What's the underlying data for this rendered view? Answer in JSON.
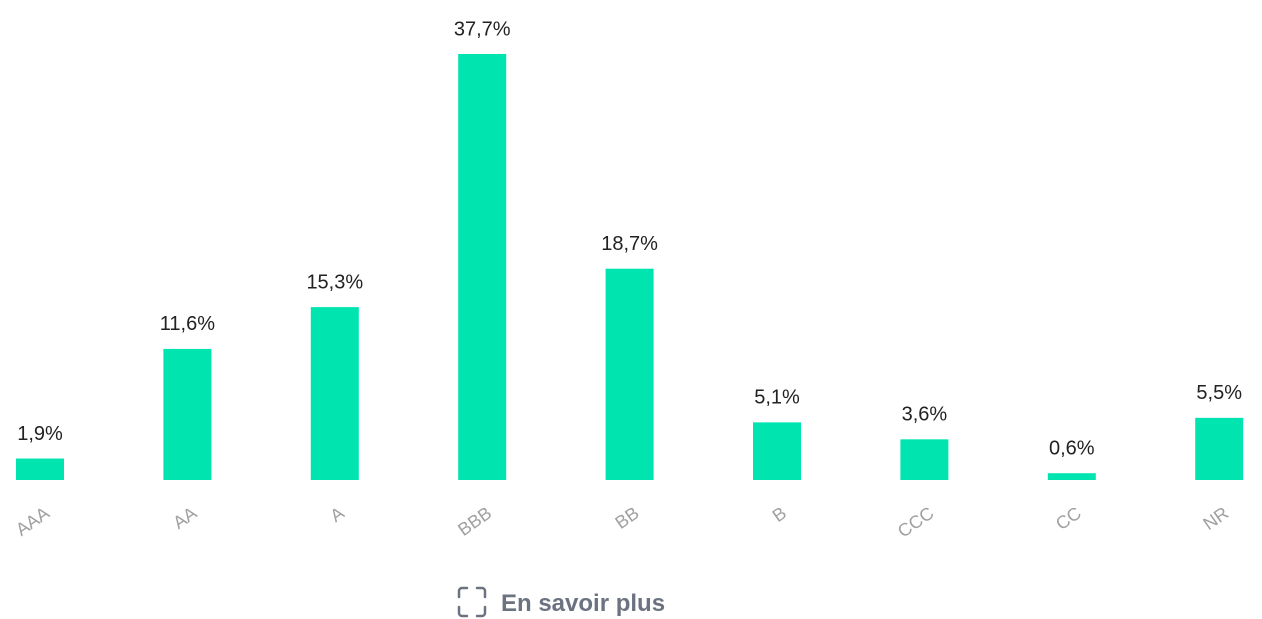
{
  "chart_data": {
    "type": "bar",
    "categories": [
      "AAA",
      "AA",
      "A",
      "BBB",
      "BB",
      "B",
      "CCC",
      "CC",
      "NR"
    ],
    "values": [
      1.9,
      11.6,
      15.3,
      37.7,
      18.7,
      5.1,
      3.6,
      0.6,
      5.5
    ],
    "value_labels": [
      "1,9%",
      "11,6%",
      "15,3%",
      "37,7%",
      "18,7%",
      "5,1%",
      "3,6%",
      "0,6%",
      "5,5%"
    ],
    "color": "#00e5b0",
    "grid": false
  },
  "link_text": "En savoir plus"
}
